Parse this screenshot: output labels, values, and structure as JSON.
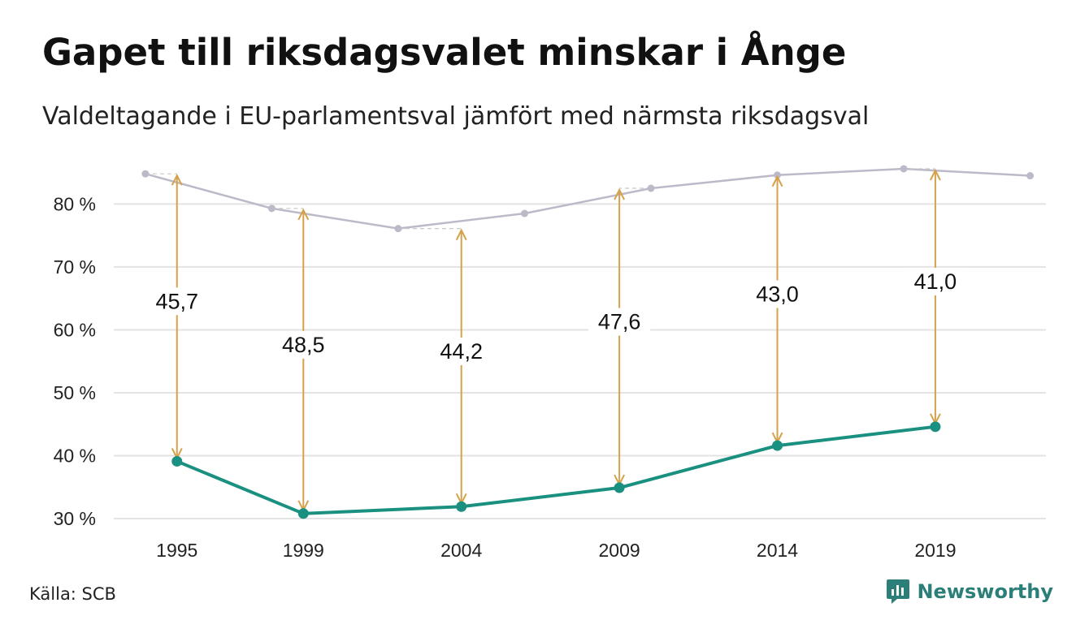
{
  "header": {
    "title": "Gapet till riksdagsvalet minskar i Ånge",
    "subtitle": "Valdeltagande i EU-parlamentsval jämfört med närmsta riksdagsval"
  },
  "footer": {
    "source": "Källa: SCB",
    "brand": "Newsworthy"
  },
  "colors": {
    "eu": "#1a9080",
    "riksdag": "#bdb9c8",
    "arrow": "#d4a24c",
    "grid": "#e3e3e3",
    "brand": "#2b7f78"
  },
  "chart_data": {
    "type": "line",
    "y_ticks": [
      "30 %",
      "40 %",
      "50 %",
      "60 %",
      "70 %",
      "80 %"
    ],
    "y_tick_values": [
      30,
      40,
      50,
      60,
      70,
      80
    ],
    "ylim": [
      30,
      85.6
    ],
    "xlim": [
      1993,
      2022.5
    ],
    "x_ticks": [
      "1995",
      "1999",
      "2004",
      "2009",
      "2014",
      "2019"
    ],
    "grid": true,
    "series": [
      {
        "key": "riksdag",
        "x": [
          1994,
          1998,
          2002,
          2006,
          2010,
          2014,
          2018,
          2022
        ],
        "values": [
          84.8,
          79.3,
          76.1,
          78.5,
          82.5,
          84.6,
          85.6,
          84.5
        ]
      },
      {
        "key": "eu",
        "x": [
          1995,
          1999,
          2004,
          2009,
          2014,
          2019
        ],
        "values": [
          39.1,
          30.8,
          31.9,
          34.9,
          41.6,
          44.6
        ]
      }
    ],
    "gaps": [
      {
        "x": 1995,
        "top": 84.8,
        "bottom": 39.1,
        "label": "45,7"
      },
      {
        "x": 1999,
        "top": 79.3,
        "bottom": 30.8,
        "label": "48,5"
      },
      {
        "x": 2004,
        "top": 76.1,
        "bottom": 31.9,
        "label": "44,2"
      },
      {
        "x": 2009,
        "top": 82.5,
        "bottom": 34.9,
        "label": "47,6"
      },
      {
        "x": 2014,
        "top": 84.6,
        "bottom": 41.6,
        "label": "43,0"
      },
      {
        "x": 2019,
        "top": 85.6,
        "bottom": 44.6,
        "label": "41,0"
      }
    ]
  }
}
